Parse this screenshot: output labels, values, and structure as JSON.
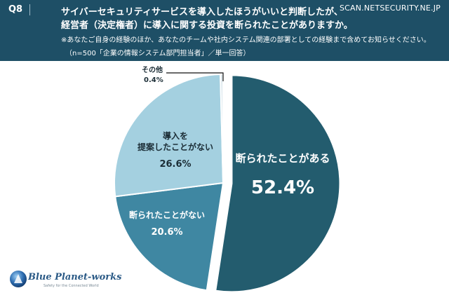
{
  "header": {
    "question_number": "Q8",
    "site": "SCAN.NETSECURITY.NE.JP",
    "question_line1": "サイバーセキュリティサービスを導入したほうがいいと判断したが、",
    "question_line2": "経営者（決定権者）に導入に関する投資を断られたことがありますか。",
    "note_line1": "※あなたご自身の経験のほか、あなたのチームや社内システム関連の部署としての経験まで含めてお知らせください。",
    "note_line2": "（n=500「企業の情報システム部門担当者」／単一回答）"
  },
  "chart_data": {
    "type": "pie",
    "slices": [
      {
        "label": "断られたことがある",
        "value": 52.4,
        "value_label": "52.4%",
        "color": "#235c6e"
      },
      {
        "label": "断られたことがない",
        "value": 20.6,
        "value_label": "20.6%",
        "color": "#3f87a2"
      },
      {
        "label_line1": "導入を",
        "label_line2": "提案したことがない",
        "value": 26.6,
        "value_label": "26.6%",
        "color": "#a4d0e0"
      },
      {
        "label": "その他",
        "value": 0.4,
        "value_label": "0.4%",
        "color": "#d9e6ec"
      }
    ],
    "start": "12 o'clock",
    "direction": "clockwise",
    "exploded_slice": 0
  },
  "logo": {
    "name": "Blue Planet-works",
    "tagline": "Safety for the Connected World"
  },
  "colors": {
    "header_bg": "#1e4f66",
    "header_text": "#ffffff"
  }
}
